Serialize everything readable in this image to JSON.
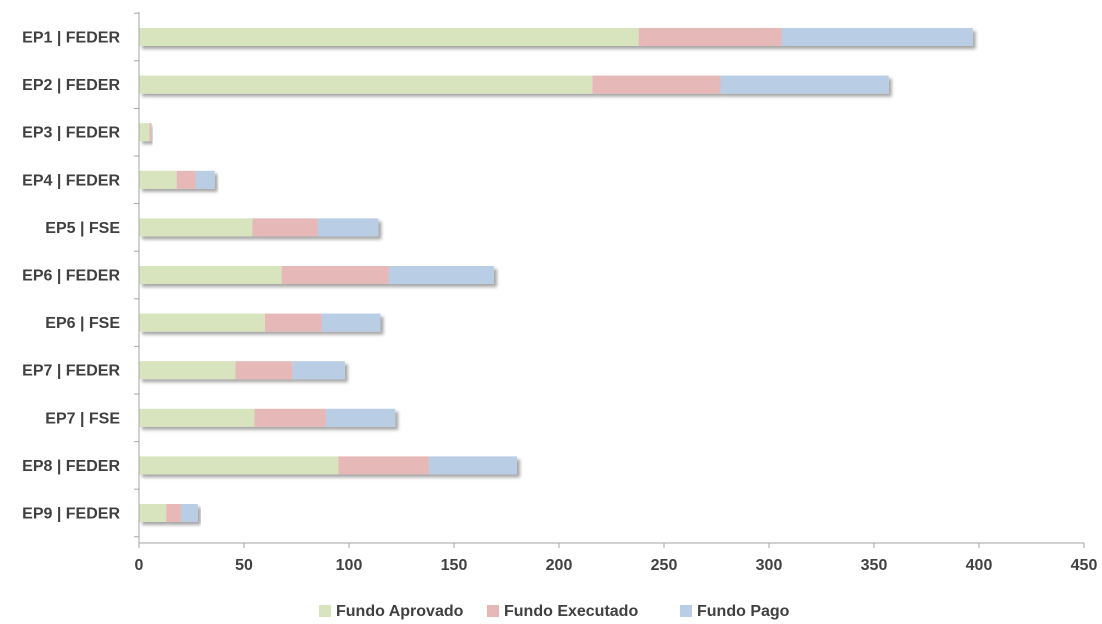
{
  "chart_data": {
    "type": "bar",
    "orientation": "horizontal",
    "stacked": true,
    "categories": [
      "EP1 | FEDER",
      "EP2 | FEDER",
      "EP3 | FEDER",
      "EP4 | FEDER",
      "EP5 | FSE",
      "EP6 | FEDER",
      "EP6 | FSE",
      "EP7 | FEDER",
      "EP7 | FSE",
      "EP8 | FEDER",
      "EP9 | FEDER"
    ],
    "series": [
      {
        "name": "Fundo Aprovado",
        "color": "#d7e4bd",
        "values": [
          238,
          216,
          5,
          18,
          54,
          68,
          60,
          46,
          55,
          95,
          13
        ]
      },
      {
        "name": "Fundo Executado",
        "color": "#e6b9b8",
        "values": [
          68,
          61,
          1,
          9,
          31,
          51,
          27,
          27,
          34,
          43,
          7
        ]
      },
      {
        "name": "Fundo Pago",
        "color": "#b9cde5",
        "values": [
          91,
          80,
          0,
          9,
          29,
          50,
          28,
          25,
          33,
          42,
          8
        ]
      }
    ],
    "xlim": [
      0,
      450
    ],
    "xticks": [
      0,
      50,
      100,
      150,
      200,
      250,
      300,
      350,
      400,
      450
    ],
    "title": "",
    "xlabel": "",
    "ylabel": "",
    "grid": false,
    "legend_position": "bottom"
  }
}
